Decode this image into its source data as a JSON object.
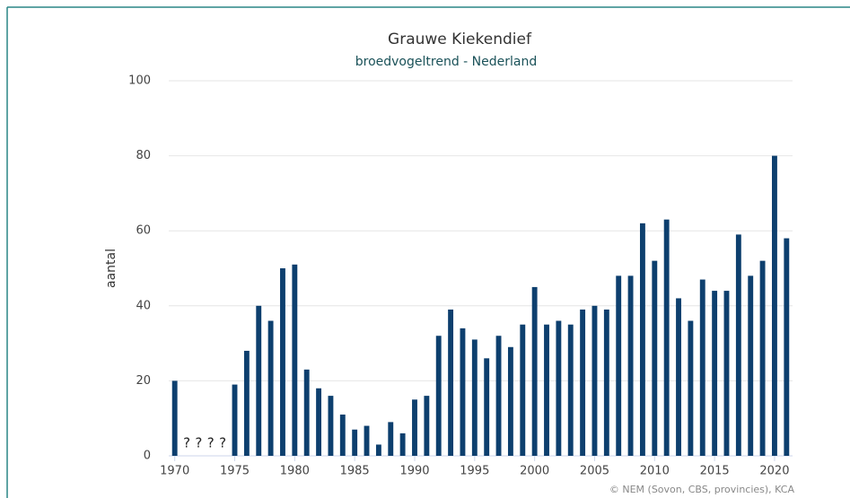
{
  "chart_data": {
    "type": "bar",
    "title": "Grauwe Kiekendief",
    "subtitle": "broedvogeltrend - Nederland",
    "y_label": "aantal",
    "credits": "© NEM (Sovon, CBS, provincies), KCA",
    "x": [
      1970,
      1971,
      1972,
      1973,
      1974,
      1975,
      1976,
      1977,
      1978,
      1979,
      1980,
      1981,
      1982,
      1983,
      1984,
      1985,
      1986,
      1987,
      1988,
      1989,
      1990,
      1991,
      1992,
      1993,
      1994,
      1995,
      1996,
      1997,
      1998,
      1999,
      2000,
      2001,
      2002,
      2003,
      2004,
      2005,
      2006,
      2007,
      2008,
      2009,
      2010,
      2011,
      2012,
      2013,
      2014,
      2015,
      2016,
      2017,
      2018,
      2019,
      2020,
      2021
    ],
    "values": [
      20,
      null,
      null,
      null,
      null,
      19,
      28,
      40,
      36,
      50,
      51,
      23,
      18,
      16,
      11,
      7,
      8,
      3,
      9,
      6,
      15,
      16,
      32,
      39,
      34,
      31,
      26,
      32,
      29,
      35,
      45,
      35,
      36,
      35,
      39,
      40,
      39,
      48,
      48,
      62,
      52,
      63,
      42,
      36,
      47,
      44,
      44,
      59,
      48,
      52,
      80,
      58
    ],
    "annotations": [
      {
        "x": 1971,
        "text": "?"
      },
      {
        "x": 1972,
        "text": "?"
      },
      {
        "x": 1973,
        "text": "?"
      },
      {
        "x": 1974,
        "text": "?"
      }
    ],
    "color": "#0d3f6e",
    "xlim": [
      1969.5,
      2021.5
    ],
    "xticks": [
      1970,
      1975,
      1980,
      1985,
      1990,
      1995,
      2000,
      2005,
      2010,
      2015,
      2020
    ],
    "ylim": [
      0,
      100
    ],
    "yticks": [
      0,
      20,
      40,
      60,
      80,
      100
    ],
    "grid": true
  }
}
